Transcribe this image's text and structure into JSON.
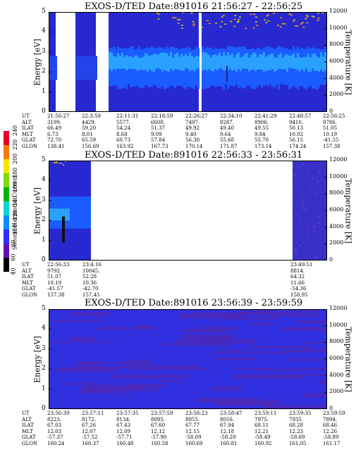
{
  "colorbar": {
    "label": "Second Harmonic Current",
    "ticks": [
      "40",
      "60",
      "80",
      "100",
      "120",
      "140",
      "160",
      "180",
      "200",
      "220",
      "240"
    ]
  },
  "panels": [
    {
      "title": "EXOS-D/TED   Date:891016   21:56:27 - 22:56:25",
      "ylabel": "Energy [eV]",
      "tlabel": "Temperature [K]",
      "ep_rows": [
        {
          "label": "UT",
          "values": [
            "21:56:27",
            "22:3:59",
            "22:11:31",
            "22:18:59",
            "22:26:27",
            "22:34:10",
            "22:41:29",
            "22:48:57",
            "22:56:25"
          ]
        },
        {
          "label": "ALT",
          "values": [
            "3199.",
            "4429.",
            "5577.",
            "6600.",
            "7497.",
            "8287.",
            "8906.",
            "9410.",
            "9786."
          ]
        },
        {
          "label": "ILAT",
          "values": [
            "66.49",
            "59.20",
            "54.24",
            "51.37",
            "49.92",
            "49.40",
            "49.55",
            "50.13",
            "51.05"
          ]
        },
        {
          "label": "MLT",
          "values": [
            "6.73",
            "8.01",
            "8.68",
            "9.09",
            "9.40",
            "9.64",
            "9.84",
            "10.02",
            "10.19"
          ]
        },
        {
          "label": "GLAT",
          "values": [
            "72.70",
            "65.59",
            "60.73",
            "57.84",
            "56.30",
            "55.68",
            "55.70",
            "56.15",
            "-41.55"
          ]
        },
        {
          "label": "GLON",
          "values": [
            "138.41",
            "156.69",
            "163.92",
            "167.73",
            "170.14",
            "171.87",
            "173.14",
            "174.24",
            "157.38"
          ]
        }
      ]
    },
    {
      "title": "EXOS-D/TED   Date:891016   22:56:33 - 23:56:31",
      "ylabel": "Energy [eV]",
      "tlabel": "Temperature [K]",
      "ep_rows": [
        {
          "label": "UT",
          "values": [
            "22:56:33",
            "23:4:16",
            "23:49:51"
          ]
        },
        {
          "label": "ALT",
          "values": [
            "9792.",
            "10045.",
            "8814."
          ]
        },
        {
          "label": "ILAT",
          "values": [
            "51.07",
            "52.28",
            "64.32"
          ]
        },
        {
          "label": "MLT",
          "values": [
            "10.19",
            "10.36",
            "11.66"
          ]
        },
        {
          "label": "GLAT",
          "values": [
            "-41.57",
            "-42.70",
            "-54.36"
          ]
        },
        {
          "label": "GLON",
          "values": [
            "157.38",
            "157.45",
            "158.95"
          ]
        }
      ]
    },
    {
      "title": "EXOS-D/TED   Date:891016   23:56:39 - 23:59:59",
      "ylabel": "Energy [eV]",
      "tlabel": "Temperature [K]",
      "ep_rows": [
        {
          "label": "UT",
          "values": [
            "23:56:39",
            "23:57:11",
            "23:57:35",
            "23:57:59",
            "23:58:23",
            "23:58:47",
            "23:59:11",
            "23:59:35",
            "23:59:59"
          ]
        },
        {
          "label": "ALT",
          "values": [
            "8223.",
            "8172.",
            "8134.",
            "8095.",
            "8055.",
            "8016.",
            "7975.",
            "7935.",
            "7894."
          ]
        },
        {
          "label": "ILAT",
          "values": [
            "67.03",
            "67.26",
            "67.43",
            "67.60",
            "67.77",
            "67.94",
            "68.11",
            "68.28",
            "68.46"
          ]
        },
        {
          "label": "MLT",
          "values": [
            "12.03",
            "12.07",
            "12.09",
            "12.12",
            "12.15",
            "12.18",
            "12.21",
            "12.23",
            "12.26"
          ]
        },
        {
          "label": "GLAT",
          "values": [
            "-57.37",
            "-57.52",
            "-57.71",
            "-57.90",
            "-58.09",
            "-58.29",
            "-58.49",
            "-58.69",
            "-58.89"
          ]
        },
        {
          "label": "GLON",
          "values": [
            "160.24",
            "160.37",
            "160.48",
            "160.58",
            "160.69",
            "160.81",
            "160.92",
            "161.05",
            "161.17"
          ]
        }
      ]
    }
  ],
  "chart_data": [
    {
      "type": "heatmap",
      "title": "EXOS-D/TED   Date:891016   21:56:27 - 22:56:25",
      "ylabel": "Energy [eV]",
      "y2label": "Temperature [K]",
      "ylim": [
        0,
        5
      ],
      "y2lim": [
        0,
        12000
      ],
      "yticks": [
        0,
        1,
        2,
        3,
        4,
        5
      ],
      "y2ticks": [
        0,
        2000,
        4000,
        6000,
        8000,
        10000,
        12000
      ],
      "xlim": [
        "21:56:27",
        "22:56:25"
      ]
    },
    {
      "type": "heatmap",
      "title": "EXOS-D/TED   Date:891016   22:56:33 - 23:56:31",
      "ylabel": "Energy [eV]",
      "y2label": "Temperature [K]",
      "ylim": [
        0,
        5
      ],
      "y2lim": [
        0,
        12000
      ],
      "yticks": [
        0,
        1,
        2,
        3,
        4,
        5
      ],
      "y2ticks": [
        0,
        2000,
        4000,
        6000,
        8000,
        10000,
        12000
      ],
      "xlim": [
        "22:56:33",
        "23:56:31"
      ]
    },
    {
      "type": "heatmap",
      "title": "EXOS-D/TED   Date:891016   23:56:39 - 23:59:59",
      "ylabel": "Energy [eV]",
      "y2label": "Temperature [K]",
      "ylim": [
        0,
        5
      ],
      "y2lim": [
        0,
        12000
      ],
      "yticks": [
        0,
        1,
        2,
        3,
        4,
        5
      ],
      "y2ticks": [
        0,
        2000,
        4000,
        6000,
        8000,
        10000,
        12000
      ],
      "xlim": [
        "23:56:39",
        "23:59:59"
      ]
    }
  ]
}
